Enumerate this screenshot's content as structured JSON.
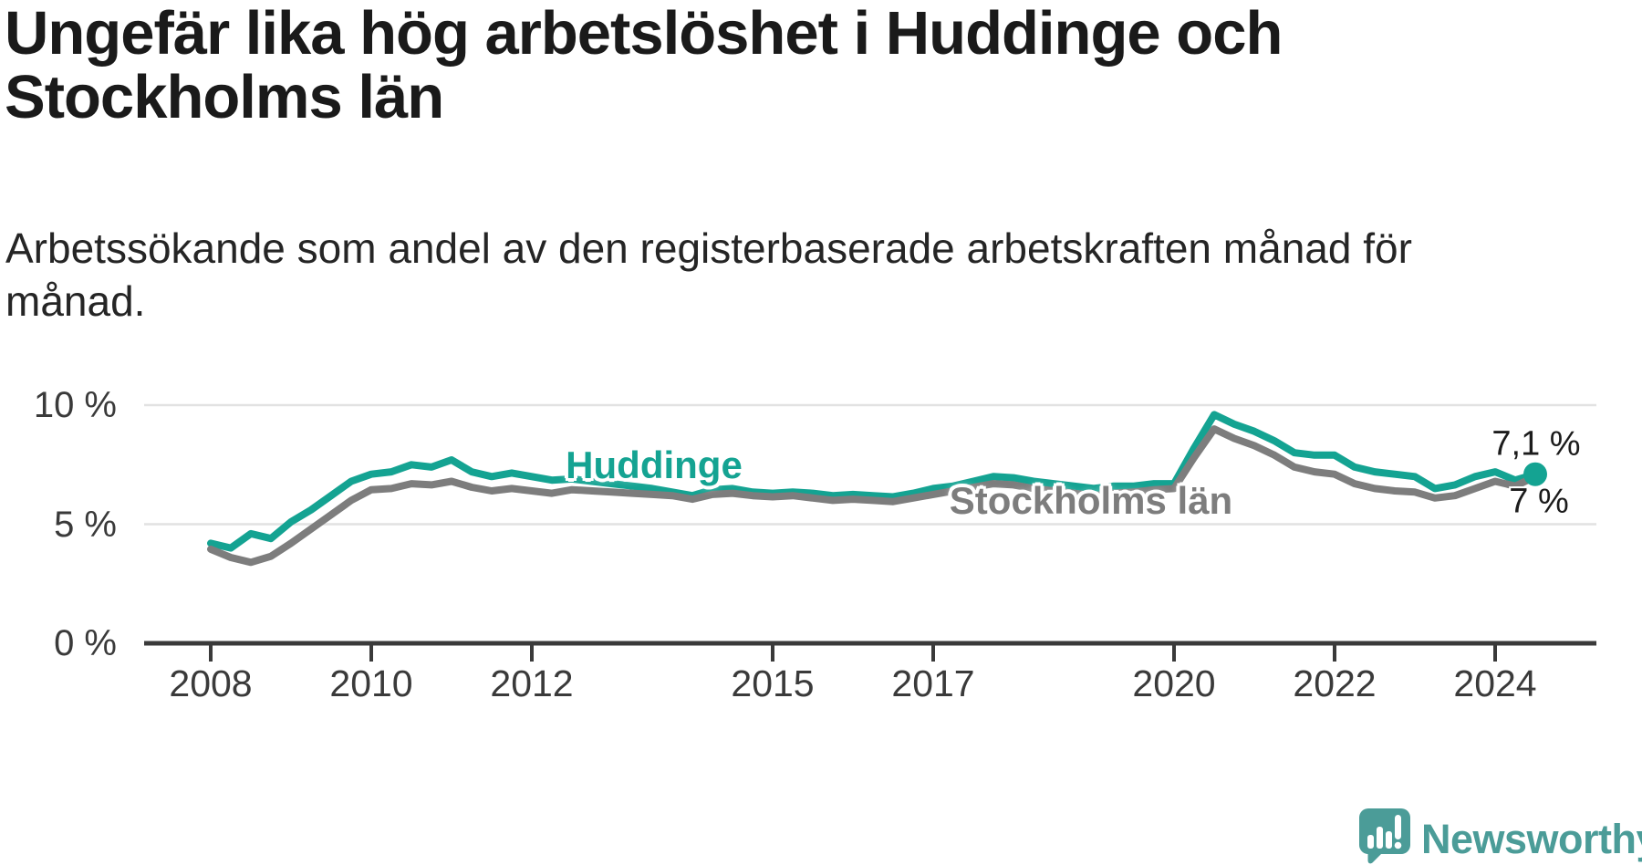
{
  "header": {
    "title": "Ungefär lika hög arbetslöshet i Huddinge och Stockholms län",
    "title_lines": [
      "Ungefär lika hög arbetslöshet i Huddinge och",
      "Stockholms län"
    ],
    "subtitle": "Arbetssökande som andel av den registerbaserade arbetskraften månad för månad.",
    "subtitle_lines": [
      "Arbetssökande som andel av den registerbaserade arbetskraften månad för",
      "månad."
    ]
  },
  "footer": {
    "brand": "Newsworthy"
  },
  "colors": {
    "huddinge_teal": "#14a392",
    "stockholm_gray": "#7d7d7d",
    "gridline": "#e2e2e2",
    "axis": "#3a3a3a",
    "text_dark": "#1a1a1a",
    "logo_teal": "#4b9c98"
  },
  "chart_data": {
    "type": "line",
    "title": "Ungefär lika hög arbetslöshet i Huddinge och Stockholms län",
    "subtitle": "Arbetssökande som andel av den registerbaserade arbetskraften månad för månad.",
    "xlabel": "",
    "ylabel": "",
    "xlim": [
      2007.2,
      2025.3
    ],
    "ylim": [
      0,
      10.8
    ],
    "grid": "horizontal",
    "legend_position": "inline-labels",
    "x_ticks": [
      2008,
      2010,
      2012,
      2015,
      2017,
      2020,
      2022,
      2024
    ],
    "x_tick_labels": [
      "2008",
      "2010",
      "2012",
      "2015",
      "2017",
      "2020",
      "2022",
      "2024"
    ],
    "y_ticks": [
      {
        "value": 0,
        "label": "0 %"
      },
      {
        "value": 5,
        "label": "5 %"
      },
      {
        "value": 10,
        "label": "10 %"
      }
    ],
    "series": [
      {
        "name": "Huddinge",
        "color": "#14a392",
        "end_label": "7,1 %",
        "end_value": 7.1,
        "points": [
          [
            2008.0,
            4.2
          ],
          [
            2008.25,
            4.0
          ],
          [
            2008.5,
            4.6
          ],
          [
            2008.75,
            4.4
          ],
          [
            2009.0,
            5.1
          ],
          [
            2009.25,
            5.6
          ],
          [
            2009.5,
            6.2
          ],
          [
            2009.75,
            6.8
          ],
          [
            2010.0,
            7.1
          ],
          [
            2010.25,
            7.2
          ],
          [
            2010.5,
            7.5
          ],
          [
            2010.75,
            7.4
          ],
          [
            2011.0,
            7.7
          ],
          [
            2011.25,
            7.2
          ],
          [
            2011.5,
            7.0
          ],
          [
            2011.75,
            7.15
          ],
          [
            2012.0,
            7.0
          ],
          [
            2012.25,
            6.85
          ],
          [
            2012.5,
            6.9
          ],
          [
            2012.75,
            6.8
          ],
          [
            2013.0,
            6.7
          ],
          [
            2013.25,
            6.6
          ],
          [
            2013.5,
            6.5
          ],
          [
            2013.75,
            6.35
          ],
          [
            2014.0,
            6.2
          ],
          [
            2014.25,
            6.45
          ],
          [
            2014.5,
            6.5
          ],
          [
            2014.75,
            6.35
          ],
          [
            2015.0,
            6.3
          ],
          [
            2015.25,
            6.35
          ],
          [
            2015.5,
            6.3
          ],
          [
            2015.75,
            6.2
          ],
          [
            2016.0,
            6.25
          ],
          [
            2016.25,
            6.2
          ],
          [
            2016.5,
            6.15
          ],
          [
            2016.75,
            6.3
          ],
          [
            2017.0,
            6.5
          ],
          [
            2017.25,
            6.6
          ],
          [
            2017.5,
            6.8
          ],
          [
            2017.75,
            7.0
          ],
          [
            2018.0,
            6.95
          ],
          [
            2018.25,
            6.8
          ],
          [
            2018.5,
            6.7
          ],
          [
            2018.75,
            6.6
          ],
          [
            2019.0,
            6.5
          ],
          [
            2019.25,
            6.6
          ],
          [
            2019.5,
            6.6
          ],
          [
            2019.75,
            6.7
          ],
          [
            2020.0,
            6.7
          ],
          [
            2020.25,
            8.2
          ],
          [
            2020.5,
            9.6
          ],
          [
            2020.75,
            9.2
          ],
          [
            2021.0,
            8.9
          ],
          [
            2021.25,
            8.5
          ],
          [
            2021.5,
            8.0
          ],
          [
            2021.75,
            7.9
          ],
          [
            2022.0,
            7.9
          ],
          [
            2022.25,
            7.4
          ],
          [
            2022.5,
            7.2
          ],
          [
            2022.75,
            7.1
          ],
          [
            2023.0,
            7.0
          ],
          [
            2023.25,
            6.5
          ],
          [
            2023.5,
            6.65
          ],
          [
            2023.75,
            7.0
          ],
          [
            2024.0,
            7.2
          ],
          [
            2024.25,
            6.85
          ],
          [
            2024.5,
            7.1
          ]
        ]
      },
      {
        "name": "Stockholms län",
        "color": "#7d7d7d",
        "end_label": "7 %",
        "end_value": 7.0,
        "points": [
          [
            2008.0,
            3.95
          ],
          [
            2008.25,
            3.6
          ],
          [
            2008.5,
            3.4
          ],
          [
            2008.75,
            3.65
          ],
          [
            2009.0,
            4.2
          ],
          [
            2009.25,
            4.8
          ],
          [
            2009.5,
            5.4
          ],
          [
            2009.75,
            6.0
          ],
          [
            2010.0,
            6.45
          ],
          [
            2010.25,
            6.5
          ],
          [
            2010.5,
            6.7
          ],
          [
            2010.75,
            6.65
          ],
          [
            2011.0,
            6.8
          ],
          [
            2011.25,
            6.55
          ],
          [
            2011.5,
            6.4
          ],
          [
            2011.75,
            6.5
          ],
          [
            2012.0,
            6.4
          ],
          [
            2012.25,
            6.3
          ],
          [
            2012.5,
            6.45
          ],
          [
            2012.75,
            6.4
          ],
          [
            2013.0,
            6.35
          ],
          [
            2013.25,
            6.3
          ],
          [
            2013.5,
            6.25
          ],
          [
            2013.75,
            6.2
          ],
          [
            2014.0,
            6.05
          ],
          [
            2014.25,
            6.25
          ],
          [
            2014.5,
            6.3
          ],
          [
            2014.75,
            6.2
          ],
          [
            2015.0,
            6.15
          ],
          [
            2015.25,
            6.2
          ],
          [
            2015.5,
            6.1
          ],
          [
            2015.75,
            6.0
          ],
          [
            2016.0,
            6.05
          ],
          [
            2016.25,
            6.0
          ],
          [
            2016.5,
            5.95
          ],
          [
            2016.75,
            6.1
          ],
          [
            2017.0,
            6.25
          ],
          [
            2017.25,
            6.4
          ],
          [
            2017.5,
            6.55
          ],
          [
            2017.75,
            6.7
          ],
          [
            2018.0,
            6.65
          ],
          [
            2018.25,
            6.5
          ],
          [
            2018.5,
            6.4
          ],
          [
            2018.75,
            6.3
          ],
          [
            2019.0,
            6.2
          ],
          [
            2019.25,
            6.3
          ],
          [
            2019.5,
            6.35
          ],
          [
            2019.75,
            6.45
          ],
          [
            2020.0,
            6.5
          ],
          [
            2020.25,
            7.8
          ],
          [
            2020.5,
            9.0
          ],
          [
            2020.75,
            8.6
          ],
          [
            2021.0,
            8.3
          ],
          [
            2021.25,
            7.9
          ],
          [
            2021.5,
            7.4
          ],
          [
            2021.75,
            7.2
          ],
          [
            2022.0,
            7.1
          ],
          [
            2022.25,
            6.7
          ],
          [
            2022.5,
            6.5
          ],
          [
            2022.75,
            6.4
          ],
          [
            2023.0,
            6.35
          ],
          [
            2023.25,
            6.1
          ],
          [
            2023.5,
            6.2
          ],
          [
            2023.75,
            6.5
          ],
          [
            2024.0,
            6.8
          ],
          [
            2024.25,
            6.6
          ],
          [
            2024.5,
            7.0
          ]
        ]
      }
    ]
  }
}
